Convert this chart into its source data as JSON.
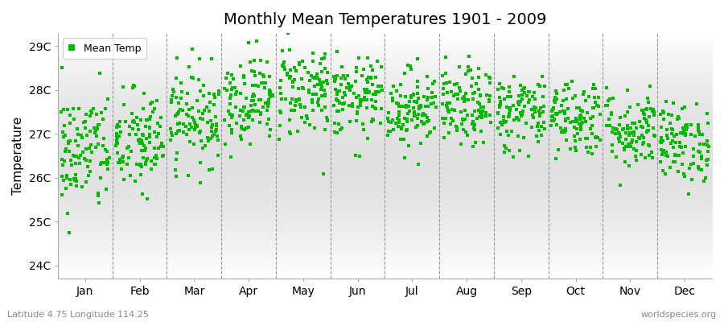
{
  "title": "Monthly Mean Temperatures 1901 - 2009",
  "ylabel": "Temperature",
  "xlabel_labels": [
    "Jan",
    "Feb",
    "Mar",
    "Apr",
    "May",
    "Jun",
    "Jul",
    "Aug",
    "Sep",
    "Oct",
    "Nov",
    "Dec"
  ],
  "ytick_labels": [
    "24C",
    "25C",
    "26C",
    "27C",
    "28C",
    "29C"
  ],
  "ytick_values": [
    24,
    25,
    26,
    27,
    28,
    29
  ],
  "ylim": [
    23.7,
    29.3
  ],
  "xlim": [
    0,
    12
  ],
  "background_color": "#f0f0f0",
  "plot_bg_top": "#ffffff",
  "plot_bg_mid": "#e8e8e8",
  "marker_color": "#00bb00",
  "legend_label": "Mean Temp",
  "footer_left": "Latitude 4.75 Longitude 114.25",
  "footer_right": "worldspecies.org",
  "monthly_mean": [
    26.6,
    26.8,
    27.4,
    27.8,
    28.0,
    27.8,
    27.6,
    27.6,
    27.5,
    27.4,
    27.1,
    26.8
  ],
  "monthly_std": [
    0.7,
    0.6,
    0.55,
    0.5,
    0.55,
    0.45,
    0.45,
    0.45,
    0.45,
    0.45,
    0.45,
    0.45
  ],
  "n_years": 109,
  "seed": 42,
  "figsize": [
    9.0,
    4.0
  ],
  "dpi": 100,
  "title_fontsize": 14,
  "tick_fontsize": 10,
  "ylabel_fontsize": 11,
  "footer_fontsize": 8
}
